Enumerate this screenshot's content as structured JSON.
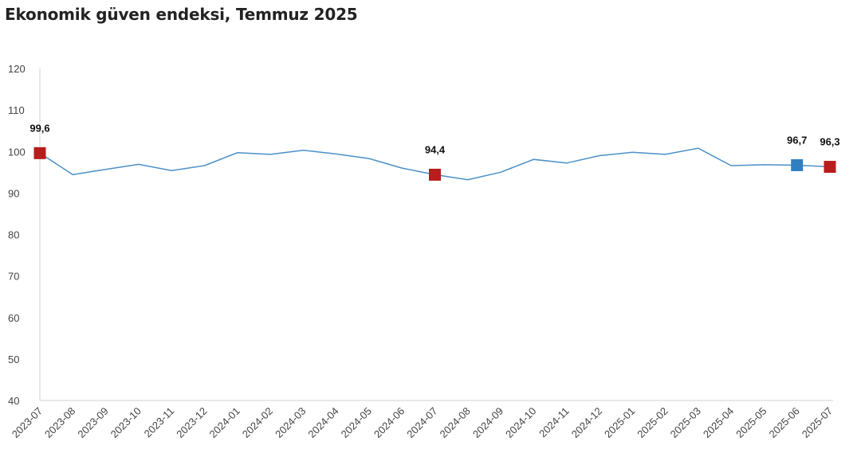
{
  "chart_data": {
    "type": "line",
    "title": "Ekonomik güven endeksi, Temmuz 2025",
    "xlabel": "",
    "ylabel": "",
    "ylim": [
      40,
      120
    ],
    "yticks": [
      40,
      50,
      60,
      70,
      80,
      90,
      100,
      110,
      120
    ],
    "grid": false,
    "legend": "none",
    "categories": [
      "2023-07",
      "2023-08",
      "2023-09",
      "2023-10",
      "2023-11",
      "2023-12",
      "2024-01",
      "2024-02",
      "2024-03",
      "2024-04",
      "2024-05",
      "2024-06",
      "2024-07",
      "2024-08",
      "2024-09",
      "2024-10",
      "2024-11",
      "2024-12",
      "2025-01",
      "2025-02",
      "2025-03",
      "2025-04",
      "2025-05",
      "2025-06",
      "2025-07"
    ],
    "series": [
      {
        "color": "#4a90c8",
        "values": [
          99.6,
          94.4,
          95.7,
          96.9,
          95.4,
          96.6,
          99.7,
          99.3,
          100.3,
          99.4,
          98.3,
          96.0,
          94.4,
          93.2,
          95.0,
          98.1,
          97.2,
          99.0,
          99.8,
          99.3,
          100.8,
          96.6,
          96.8,
          96.7,
          96.3
        ]
      }
    ],
    "highlights": [
      {
        "index": 0,
        "label": "99,6",
        "color": "#b81c1c"
      },
      {
        "index": 12,
        "label": "94,4",
        "color": "#b81c1c"
      },
      {
        "index": 23,
        "label": "96,7",
        "color": "#2f7fc1"
      },
      {
        "index": 24,
        "label": "96,3",
        "color": "#b81c1c"
      }
    ]
  }
}
